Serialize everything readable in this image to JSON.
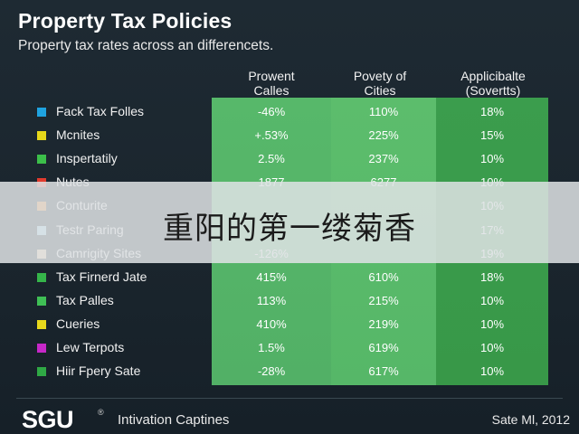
{
  "header": {
    "title": "Property Tax Policies",
    "subtitle": "Property tax rates across an differencets."
  },
  "columns": [
    {
      "line1": "Prowent",
      "line2": "Calles"
    },
    {
      "line1": "Povety of",
      "line2": "Cities"
    },
    {
      "line1": "Applicibalte",
      "line2": "(Sovertts)"
    }
  ],
  "rows": [
    {
      "label": "Fack Tax Folles",
      "bullet_color": "#1fa3e0",
      "v1": "-46%",
      "v2": "110%",
      "v3": "18%"
    },
    {
      "label": "Mcnites",
      "bullet_color": "#e6d81a",
      "v1": "+.53%",
      "v2": "225%",
      "v3": "15%"
    },
    {
      "label": "Inspertatily",
      "bullet_color": "#3cbf4a",
      "v1": "2.5%",
      "v2": "237%",
      "v3": "10%"
    },
    {
      "label": "Nutes",
      "bullet_color": "#e23b2e",
      "v1": "1877",
      "v2": "6277",
      "v3": "10%"
    },
    {
      "label": "Conturite",
      "bullet_color": "#f08a24",
      "v1": "",
      "v2": "",
      "v3": "10%"
    },
    {
      "label": "Testr Paring",
      "bullet_color": "#a6dcf0",
      "v1": "",
      "v2": "",
      "v3": "17%"
    },
    {
      "label": "Camrigity Sites",
      "bullet_color": "#f2c9a0",
      "v1": "-126%",
      "v2": "",
      "v3": "19%"
    },
    {
      "label": "Tax Firnerd Jate",
      "bullet_color": "#35b54a",
      "v1": "415%",
      "v2": "610%",
      "v3": "18%"
    },
    {
      "label": "Tax Palles",
      "bullet_color": "#3fbf55",
      "v1": "113%",
      "v2": "215%",
      "v3": "10%"
    },
    {
      "label": "Cueries",
      "bullet_color": "#e8d91c",
      "v1": "410%",
      "v2": "219%",
      "v3": "10%"
    },
    {
      "label": "Lew Terpots",
      "bullet_color": "#c628c8",
      "v1": "1.5%",
      "v2": "619%",
      "v3": "10%"
    },
    {
      "label": "Hiir Fpery Sate",
      "bullet_color": "#2fa845",
      "v1": "-28%",
      "v2": "617%",
      "v3": "10%"
    }
  ],
  "overlay": {
    "text": "重阳的第一缕菊香"
  },
  "footer": {
    "logo": "SGU",
    "logo_mark": "®",
    "caption": "Intivation Captines",
    "right": "Sate Ml, 2012"
  },
  "colors": {
    "background": "#1c2830",
    "column_1": "#57b86a",
    "column_2": "#5cbd6c",
    "column_3": "#3b9d4d",
    "banner": "#dee2e4"
  }
}
